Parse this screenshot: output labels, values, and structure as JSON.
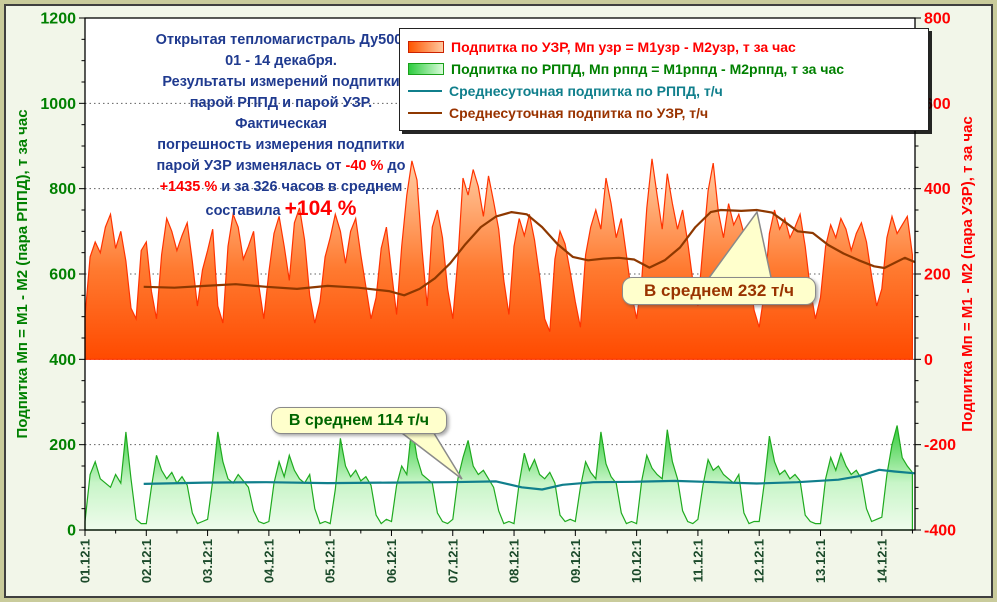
{
  "title": {
    "lines": [
      {
        "parts": [
          {
            "text": "Открытая тепломагистраль Ду500,",
            "style": "navy"
          }
        ]
      },
      {
        "parts": [
          {
            "text": "01 - 14 декабря.",
            "style": "navy"
          }
        ]
      },
      {
        "parts": [
          {
            "text": "Результаты измерений подпитки",
            "style": "navy"
          }
        ]
      },
      {
        "parts": [
          {
            "text": "парой РППД и парой УЗР.",
            "style": "navy"
          }
        ]
      },
      {
        "parts": [
          {
            "text": "Фактическая",
            "style": "navy"
          }
        ]
      },
      {
        "parts": [
          {
            "text": "погрешность измерения подпитки",
            "style": "navy"
          }
        ]
      },
      {
        "parts": [
          {
            "text": "парой УЗР изменялась от ",
            "style": "navy"
          },
          {
            "text": "-40 %",
            "style": "red"
          },
          {
            "text": " до",
            "style": "navy"
          }
        ]
      },
      {
        "parts": [
          {
            "text": "+1435 %",
            "style": "red"
          },
          {
            "text": " и за 326 часов в среднем",
            "style": "navy"
          }
        ]
      },
      {
        "parts": [
          {
            "text": "составила ",
            "style": "navy"
          },
          {
            "text": "+104 %",
            "style": "red-big"
          }
        ]
      }
    ]
  },
  "legend": {
    "items": [
      {
        "swatch": "area-orange",
        "label": "Подпитка по УЗР, Мп узр = М1узр - М2узр, т за час",
        "color": "#FF0000"
      },
      {
        "swatch": "area-green",
        "label": "Подпитка по РППД, Мп рппд = М1рппд - М2рппд, т за час",
        "color": "#008000"
      },
      {
        "swatch": "line-teal",
        "label": "Среднесуточная подпитка по РППД, т/ч",
        "color": "#107F8C"
      },
      {
        "swatch": "line-darkred",
        "label": "Среднесуточная подпитка по УЗР, т/ч",
        "color": "#993300"
      }
    ]
  },
  "annotations": [
    {
      "text": "В среднем 232 т/ч",
      "value": 232,
      "unit": "т/ч",
      "series": "Среднесуточная подпитка по УЗР"
    },
    {
      "text": "В среднем 114 т/ч",
      "value": 114,
      "unit": "т/ч",
      "series": "Среднесуточная подпитка по РППД"
    }
  ],
  "chart_data": {
    "type": "combo-area-line",
    "x": {
      "unit": "hours",
      "start_label": "01.12:1",
      "end_label": "14.12:1",
      "total_hours": 326,
      "day_tick_labels": [
        "01.12:1",
        "02.12:1",
        "03.12:1",
        "04.12:1",
        "05.12:1",
        "06.12:1",
        "07.12:1",
        "08.12:1",
        "09.12:1",
        "10.12:1",
        "11.12:1",
        "12.12:1",
        "13.12:1",
        "14.12:1"
      ],
      "tick_label_color": "#1B4A2A"
    },
    "axes": {
      "left": {
        "title": "Подпитка Мп = М1 - М2 (пара РППД), т за час",
        "color": "#008000",
        "min": 0,
        "max": 1200,
        "major_step": 200,
        "minor_step": 50
      },
      "right": {
        "title": "Подпитка Мп = М1 - М2 (пара УЗР), т за час",
        "color": "#FF0000",
        "min": -400,
        "max": 800,
        "major_step": 200,
        "minor_step": 50
      }
    },
    "grid": {
      "horizontal_dotted_at_left_values": [
        200,
        400,
        600,
        800,
        1000
      ],
      "color": "#606060"
    },
    "series": [
      {
        "name": "Подпитка по УЗР, Мп узр = М1узр - М2узр, т за час",
        "kind": "area",
        "axis": "right",
        "baseline": 0,
        "start_hour": 1,
        "step_hours": 2,
        "outline": "#FF3300",
        "gradient_top": "#FFD0A8",
        "gradient_mid": "#FF7A30",
        "gradient_bottom": "#FF4A00",
        "values": [
          100,
          240,
          275,
          250,
          310,
          340,
          260,
          300,
          230,
          120,
          95,
          255,
          275,
          160,
          95,
          245,
          330,
          300,
          255,
          290,
          320,
          230,
          125,
          210,
          255,
          305,
          125,
          85,
          265,
          340,
          310,
          235,
          265,
          300,
          175,
          95,
          205,
          295,
          335,
          265,
          185,
          320,
          355,
          280,
          150,
          85,
          135,
          240,
          285,
          340,
          300,
          225,
          300,
          330,
          245,
          170,
          95,
          145,
          260,
          310,
          205,
          105,
          265,
          385,
          465,
          420,
          255,
          125,
          310,
          350,
          285,
          165,
          95,
          235,
          425,
          385,
          445,
          405,
          335,
          430,
          370,
          305,
          185,
          105,
          265,
          330,
          290,
          340,
          280,
          195,
          95,
          65,
          235,
          300,
          270,
          205,
          135,
          75,
          245,
          310,
          350,
          305,
          425,
          365,
          285,
          330,
          245,
          155,
          95,
          185,
          355,
          470,
          385,
          305,
          435,
          365,
          305,
          350,
          275,
          185,
          125,
          265,
          395,
          460,
          345,
          285,
          365,
          315,
          340,
          295,
          205,
          115,
          75,
          155,
          295,
          350,
          305,
          330,
          285,
          310,
          340,
          265,
          165,
          95,
          145,
          265,
          315,
          285,
          330,
          305,
          255,
          295,
          320,
          275,
          195,
          125,
          165,
          285,
          335,
          295,
          315,
          335,
          245
        ]
      },
      {
        "name": "Подпитка по РППД, Мп рппд = М1рппд - М2рппд, т за час",
        "kind": "area",
        "axis": "left",
        "baseline": 0,
        "start_hour": 1,
        "step_hours": 2,
        "outline": "#1FAA1F",
        "gradient_top": "#30CC38",
        "gradient_mid": "#C8F5C8",
        "gradient_bottom": "#EFFCEC",
        "values": [
          20,
          130,
          160,
          120,
          110,
          100,
          130,
          110,
          230,
          120,
          25,
          15,
          15,
          100,
          175,
          140,
          120,
          135,
          110,
          125,
          105,
          40,
          15,
          20,
          25,
          115,
          230,
          160,
          120,
          110,
          130,
          115,
          100,
          45,
          20,
          15,
          20,
          110,
          160,
          125,
          175,
          140,
          120,
          110,
          130,
          50,
          15,
          20,
          15,
          95,
          215,
          150,
          125,
          140,
          115,
          125,
          105,
          35,
          15,
          25,
          20,
          105,
          150,
          130,
          245,
          170,
          130,
          120,
          110,
          40,
          20,
          15,
          25,
          120,
          170,
          210,
          150,
          130,
          140,
          120,
          100,
          45,
          15,
          20,
          15,
          110,
          180,
          140,
          165,
          130,
          120,
          135,
          110,
          35,
          20,
          25,
          20,
          100,
          160,
          135,
          120,
          230,
          155,
          125,
          110,
          40,
          15,
          20,
          15,
          115,
          175,
          145,
          130,
          120,
          235,
          160,
          120,
          45,
          20,
          15,
          25,
          105,
          165,
          140,
          150,
          130,
          120,
          110,
          130,
          40,
          15,
          20,
          20,
          110,
          220,
          160,
          130,
          140,
          120,
          130,
          115,
          35,
          20,
          15,
          15,
          120,
          170,
          140,
          180,
          150,
          130,
          140,
          120,
          50,
          20,
          25,
          30,
          130,
          200,
          245,
          170,
          150,
          135
        ]
      },
      {
        "name": "Среднесуточная подпитка по УЗР, т/ч",
        "kind": "line",
        "axis": "right",
        "color": "#8E3800",
        "width": 2.2,
        "mean": 232,
        "points": [
          [
            24,
            170
          ],
          [
            36,
            168
          ],
          [
            48,
            172
          ],
          [
            60,
            176
          ],
          [
            72,
            170
          ],
          [
            84,
            165
          ],
          [
            96,
            172
          ],
          [
            108,
            168
          ],
          [
            120,
            160
          ],
          [
            126,
            150
          ],
          [
            132,
            165
          ],
          [
            138,
            190
          ],
          [
            144,
            225
          ],
          [
            150,
            270
          ],
          [
            156,
            310
          ],
          [
            162,
            335
          ],
          [
            168,
            345
          ],
          [
            174,
            340
          ],
          [
            180,
            310
          ],
          [
            186,
            270
          ],
          [
            192,
            240
          ],
          [
            198,
            232
          ],
          [
            204,
            236
          ],
          [
            210,
            238
          ],
          [
            216,
            234
          ],
          [
            222,
            215
          ],
          [
            228,
            232
          ],
          [
            234,
            262
          ],
          [
            240,
            310
          ],
          [
            246,
            345
          ],
          [
            250,
            350
          ],
          [
            258,
            348
          ],
          [
            264,
            350
          ],
          [
            270,
            344
          ],
          [
            276,
            318
          ],
          [
            280,
            300
          ],
          [
            286,
            296
          ],
          [
            292,
            268
          ],
          [
            298,
            248
          ],
          [
            304,
            232
          ],
          [
            310,
            218
          ],
          [
            314,
            214
          ],
          [
            318,
            226
          ],
          [
            322,
            238
          ],
          [
            326,
            228
          ]
        ]
      },
      {
        "name": "Среднесуточная подпитка по РППД, т/ч",
        "kind": "line",
        "axis": "left",
        "color": "#107F8C",
        "width": 2.2,
        "mean": 114,
        "points": [
          [
            24,
            108
          ],
          [
            48,
            111
          ],
          [
            72,
            112
          ],
          [
            96,
            110
          ],
          [
            120,
            111
          ],
          [
            144,
            112
          ],
          [
            162,
            114
          ],
          [
            172,
            100
          ],
          [
            180,
            95
          ],
          [
            188,
            106
          ],
          [
            200,
            112
          ],
          [
            216,
            113
          ],
          [
            232,
            115
          ],
          [
            248,
            112
          ],
          [
            264,
            109
          ],
          [
            280,
            112
          ],
          [
            296,
            118
          ],
          [
            304,
            126
          ],
          [
            312,
            141
          ],
          [
            318,
            137
          ],
          [
            326,
            133
          ]
        ]
      }
    ]
  }
}
